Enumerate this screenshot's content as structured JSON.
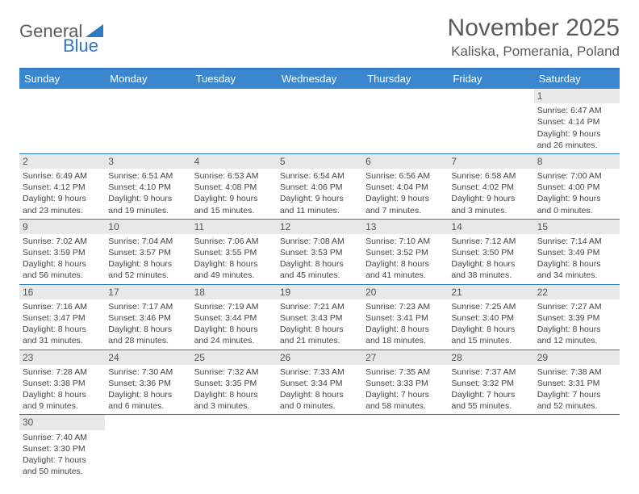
{
  "logo": {
    "text_a": "General",
    "text_b": "Blue"
  },
  "title": "November 2025",
  "subtitle": "Kaliska, Pomerania, Poland",
  "colors": {
    "header_bg": "#3b87cf",
    "border": "#2f78c4",
    "daynum_bg": "#e8e8e8",
    "text": "#444444",
    "title_text": "#5a5a5a"
  },
  "day_headers": [
    "Sunday",
    "Monday",
    "Tuesday",
    "Wednesday",
    "Thursday",
    "Friday",
    "Saturday"
  ],
  "weeks": [
    [
      null,
      null,
      null,
      null,
      null,
      null,
      {
        "n": "1",
        "sr": "6:47 AM",
        "ss": "4:14 PM",
        "dl": "9 hours and 26 minutes."
      }
    ],
    [
      {
        "n": "2",
        "sr": "6:49 AM",
        "ss": "4:12 PM",
        "dl": "9 hours and 23 minutes."
      },
      {
        "n": "3",
        "sr": "6:51 AM",
        "ss": "4:10 PM",
        "dl": "9 hours and 19 minutes."
      },
      {
        "n": "4",
        "sr": "6:53 AM",
        "ss": "4:08 PM",
        "dl": "9 hours and 15 minutes."
      },
      {
        "n": "5",
        "sr": "6:54 AM",
        "ss": "4:06 PM",
        "dl": "9 hours and 11 minutes."
      },
      {
        "n": "6",
        "sr": "6:56 AM",
        "ss": "4:04 PM",
        "dl": "9 hours and 7 minutes."
      },
      {
        "n": "7",
        "sr": "6:58 AM",
        "ss": "4:02 PM",
        "dl": "9 hours and 3 minutes."
      },
      {
        "n": "8",
        "sr": "7:00 AM",
        "ss": "4:00 PM",
        "dl": "9 hours and 0 minutes."
      }
    ],
    [
      {
        "n": "9",
        "sr": "7:02 AM",
        "ss": "3:59 PM",
        "dl": "8 hours and 56 minutes."
      },
      {
        "n": "10",
        "sr": "7:04 AM",
        "ss": "3:57 PM",
        "dl": "8 hours and 52 minutes."
      },
      {
        "n": "11",
        "sr": "7:06 AM",
        "ss": "3:55 PM",
        "dl": "8 hours and 49 minutes."
      },
      {
        "n": "12",
        "sr": "7:08 AM",
        "ss": "3:53 PM",
        "dl": "8 hours and 45 minutes."
      },
      {
        "n": "13",
        "sr": "7:10 AM",
        "ss": "3:52 PM",
        "dl": "8 hours and 41 minutes."
      },
      {
        "n": "14",
        "sr": "7:12 AM",
        "ss": "3:50 PM",
        "dl": "8 hours and 38 minutes."
      },
      {
        "n": "15",
        "sr": "7:14 AM",
        "ss": "3:49 PM",
        "dl": "8 hours and 34 minutes."
      }
    ],
    [
      {
        "n": "16",
        "sr": "7:16 AM",
        "ss": "3:47 PM",
        "dl": "8 hours and 31 minutes."
      },
      {
        "n": "17",
        "sr": "7:17 AM",
        "ss": "3:46 PM",
        "dl": "8 hours and 28 minutes."
      },
      {
        "n": "18",
        "sr": "7:19 AM",
        "ss": "3:44 PM",
        "dl": "8 hours and 24 minutes."
      },
      {
        "n": "19",
        "sr": "7:21 AM",
        "ss": "3:43 PM",
        "dl": "8 hours and 21 minutes."
      },
      {
        "n": "20",
        "sr": "7:23 AM",
        "ss": "3:41 PM",
        "dl": "8 hours and 18 minutes."
      },
      {
        "n": "21",
        "sr": "7:25 AM",
        "ss": "3:40 PM",
        "dl": "8 hours and 15 minutes."
      },
      {
        "n": "22",
        "sr": "7:27 AM",
        "ss": "3:39 PM",
        "dl": "8 hours and 12 minutes."
      }
    ],
    [
      {
        "n": "23",
        "sr": "7:28 AM",
        "ss": "3:38 PM",
        "dl": "8 hours and 9 minutes."
      },
      {
        "n": "24",
        "sr": "7:30 AM",
        "ss": "3:36 PM",
        "dl": "8 hours and 6 minutes."
      },
      {
        "n": "25",
        "sr": "7:32 AM",
        "ss": "3:35 PM",
        "dl": "8 hours and 3 minutes."
      },
      {
        "n": "26",
        "sr": "7:33 AM",
        "ss": "3:34 PM",
        "dl": "8 hours and 0 minutes."
      },
      {
        "n": "27",
        "sr": "7:35 AM",
        "ss": "3:33 PM",
        "dl": "7 hours and 58 minutes."
      },
      {
        "n": "28",
        "sr": "7:37 AM",
        "ss": "3:32 PM",
        "dl": "7 hours and 55 minutes."
      },
      {
        "n": "29",
        "sr": "7:38 AM",
        "ss": "3:31 PM",
        "dl": "7 hours and 52 minutes."
      }
    ],
    [
      {
        "n": "30",
        "sr": "7:40 AM",
        "ss": "3:30 PM",
        "dl": "7 hours and 50 minutes."
      },
      null,
      null,
      null,
      null,
      null,
      null
    ]
  ],
  "labels": {
    "sunrise": "Sunrise: ",
    "sunset": "Sunset: ",
    "daylight": "Daylight: "
  }
}
